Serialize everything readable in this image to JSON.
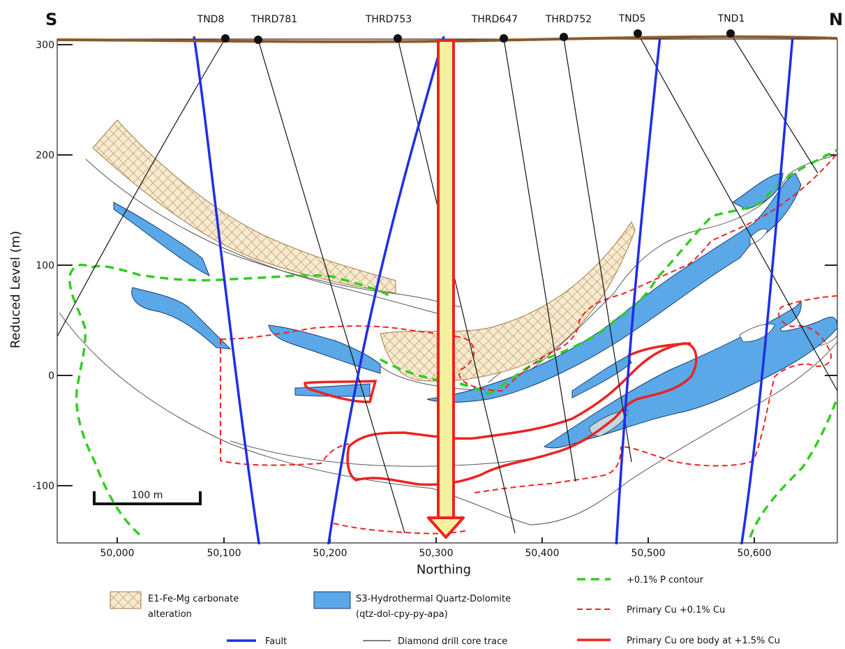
{
  "directions": {
    "south": "S",
    "north": "N"
  },
  "drillholes": [
    "TND8",
    "THRD781",
    "THRD753",
    "THRD647",
    "THRD752",
    "TND5",
    "TND1"
  ],
  "y_axis": {
    "label": "Reduced Level (m)",
    "ticks": [
      "300",
      "200",
      "100",
      "0",
      "-100"
    ]
  },
  "x_axis": {
    "label": "Northing",
    "ticks": [
      "50,000",
      "50,100",
      "50,200",
      "50,300",
      "50,400",
      "50,500",
      "50,600"
    ]
  },
  "scale_bar": {
    "label": "100 m"
  },
  "legend": {
    "carbonate": {
      "label_line1": "E1-Fe-Mg carbonate",
      "label_line2": "alteration"
    },
    "quartz": {
      "label_line1": "S3-Hydrothermal Quartz-Dolomite",
      "label_line2": "(qtz-dol-cpy-py-apa)"
    },
    "fault": {
      "label": "Fault"
    },
    "drill": {
      "label": "Diamond drill core trace"
    },
    "p_contour": {
      "label": "+0.1% P contour"
    },
    "cu_primary": {
      "label": "Primary Cu +0.1% Cu"
    },
    "cu_orebody": {
      "label": "Primary Cu ore body at +1.5% Cu"
    }
  },
  "colors": {
    "topography": "#8B5A2B",
    "fault": "#1f2ee6",
    "quartz_fill": "#5aa8e8",
    "carbonate": "#c8a062",
    "p_contour": "#33cc22",
    "cu": "#ee2222",
    "arrow_fill": "#f4f0a0",
    "arrow_stroke": "#ee2222"
  }
}
